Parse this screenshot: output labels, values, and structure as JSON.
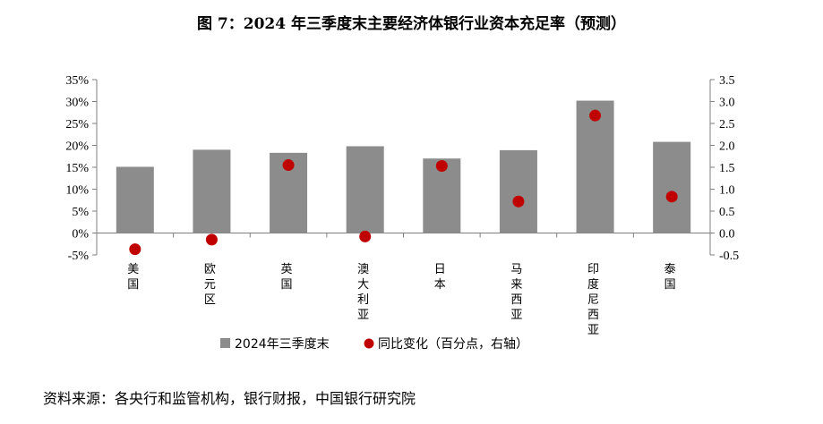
{
  "title": "图 7：2024 年三季度末主要经济体银行业资本充足率（预测）",
  "source": "资料来源：各央行和监管机构，银行财报，中国银行研究院",
  "chart_data": {
    "type": "bar",
    "categories": [
      "美国",
      "欧元区",
      "英国",
      "澳大利亚",
      "日本",
      "马来西亚",
      "印度尼西亚",
      "泰国"
    ],
    "series": [
      {
        "name": "2024年三季度末",
        "type": "bar",
        "axis": "left",
        "color": "#8c8c8c",
        "values": [
          15.1,
          19.0,
          18.3,
          19.8,
          17.0,
          18.9,
          30.2,
          20.8
        ]
      },
      {
        "name": "同比变化（百分点，右轴）",
        "type": "scatter",
        "axis": "right",
        "color": "#c00000",
        "values": [
          -0.37,
          -0.15,
          1.55,
          -0.08,
          1.53,
          0.72,
          2.68,
          0.83
        ]
      }
    ],
    "y_left": {
      "min": -5,
      "max": 35,
      "step": 5,
      "ticks": [
        "-5%",
        "0%",
        "5%",
        "10%",
        "15%",
        "20%",
        "25%",
        "30%",
        "35%"
      ]
    },
    "y_right": {
      "min": -0.5,
      "max": 3.5,
      "step": 0.5,
      "ticks": [
        "-0.5",
        "0.0",
        "0.5",
        "1.0",
        "1.5",
        "2.0",
        "2.5",
        "3.0",
        "3.5"
      ]
    },
    "grid": false,
    "legend_position": "bottom"
  }
}
